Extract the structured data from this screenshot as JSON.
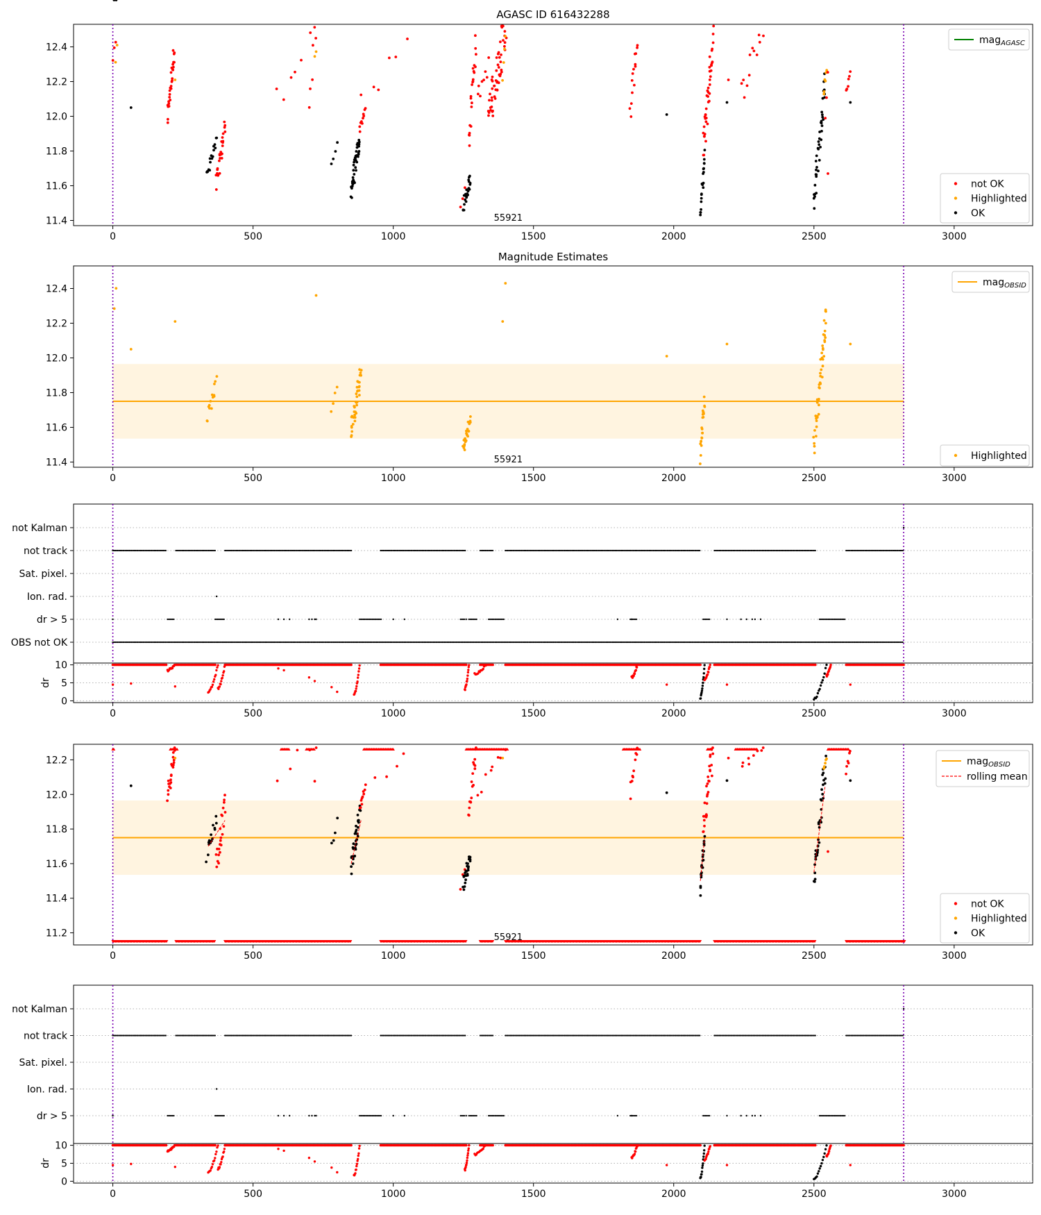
{
  "chart_data": [
    {
      "panel": "agasc",
      "type": "scatter",
      "title": "AGASC ID 616432288",
      "obsid_label": "55921",
      "xlim": [
        -140,
        3280
      ],
      "ylim": [
        11.37,
        12.53
      ],
      "xticks": [
        0,
        500,
        1000,
        1500,
        2000,
        2500,
        3000
      ],
      "yticks": [
        11.4,
        11.6,
        11.8,
        12.0,
        12.2,
        12.4
      ],
      "vlines": [
        0,
        2820
      ],
      "legend_top": [
        {
          "label": "mag",
          "sub": "AGASC",
          "color": "#008000",
          "kind": "line"
        }
      ],
      "legend_bottom": [
        {
          "label": "not OK",
          "color": "#ff0000",
          "kind": "dot"
        },
        {
          "label": "Highlighted",
          "color": "#ffa500",
          "kind": "dot"
        },
        {
          "label": "OK",
          "color": "#000000",
          "kind": "dot"
        }
      ]
    },
    {
      "panel": "estimates",
      "type": "scatter",
      "title": "Magnitude Estimates",
      "obsid_label": "55921",
      "xlim": [
        -140,
        3280
      ],
      "ylim": [
        11.37,
        12.53
      ],
      "xticks": [
        0,
        500,
        1000,
        1500,
        2000,
        2500,
        3000
      ],
      "yticks": [
        11.4,
        11.6,
        11.8,
        12.0,
        12.2,
        12.4
      ],
      "vlines": [
        0,
        2820
      ],
      "mean_line": 11.75,
      "band": [
        11.535,
        11.965
      ],
      "legend_top": [
        {
          "label": "mag",
          "sub": "OBSID",
          "color": "#ffa500",
          "kind": "line"
        }
      ],
      "legend_bottom": [
        {
          "label": "Highlighted",
          "color": "#ffa500",
          "kind": "dot"
        }
      ]
    },
    {
      "panel": "flags",
      "type": "scatter",
      "xlim": [
        -140,
        3280
      ],
      "xticks": [
        0,
        500,
        1000,
        1500,
        2000,
        2500,
        3000
      ],
      "vlines": [
        0,
        2820
      ],
      "categories": [
        "not Kalman",
        "not track",
        "Sat. pixel.",
        "Ion. rad.",
        "dr > 5",
        "OBS not OK"
      ],
      "dr_label": "dr",
      "dr_yticks": [
        0,
        5,
        10
      ],
      "dr_ylim": [
        -0.5,
        10.5
      ]
    },
    {
      "panel": "mag_rolling",
      "type": "scatter",
      "obsid_label": "55921",
      "xlim": [
        -140,
        3280
      ],
      "ylim": [
        11.13,
        12.29
      ],
      "xticks": [
        0,
        500,
        1000,
        1500,
        2000,
        2500,
        3000
      ],
      "yticks": [
        11.2,
        11.4,
        11.6,
        11.8,
        12.0,
        12.2
      ],
      "vlines": [
        0,
        2820
      ],
      "mean_line": 11.75,
      "band": [
        11.535,
        11.965
      ],
      "legend_top": [
        {
          "label": "mag",
          "sub": "OBSID",
          "color": "#ffa500",
          "kind": "line"
        },
        {
          "label": "rolling mean",
          "color": "#ff0000",
          "kind": "dash"
        }
      ],
      "legend_bottom": [
        {
          "label": "not OK",
          "color": "#ff0000",
          "kind": "dot"
        },
        {
          "label": "Highlighted",
          "color": "#ffa500",
          "kind": "dot"
        },
        {
          "label": "OK",
          "color": "#000000",
          "kind": "dot"
        }
      ]
    },
    {
      "panel": "flags2",
      "type": "scatter",
      "xlim": [
        -140,
        3280
      ],
      "xticks": [
        0,
        500,
        1000,
        1500,
        2000,
        2500,
        3000
      ],
      "vlines": [
        0,
        2820
      ],
      "categories": [
        "not Kalman",
        "not track",
        "Sat. pixel.",
        "Ion. rad.",
        "dr > 5"
      ],
      "dr_label": "dr",
      "dr_yticks": [
        0,
        5,
        10
      ],
      "dr_ylim": [
        -0.5,
        10.5
      ]
    }
  ]
}
